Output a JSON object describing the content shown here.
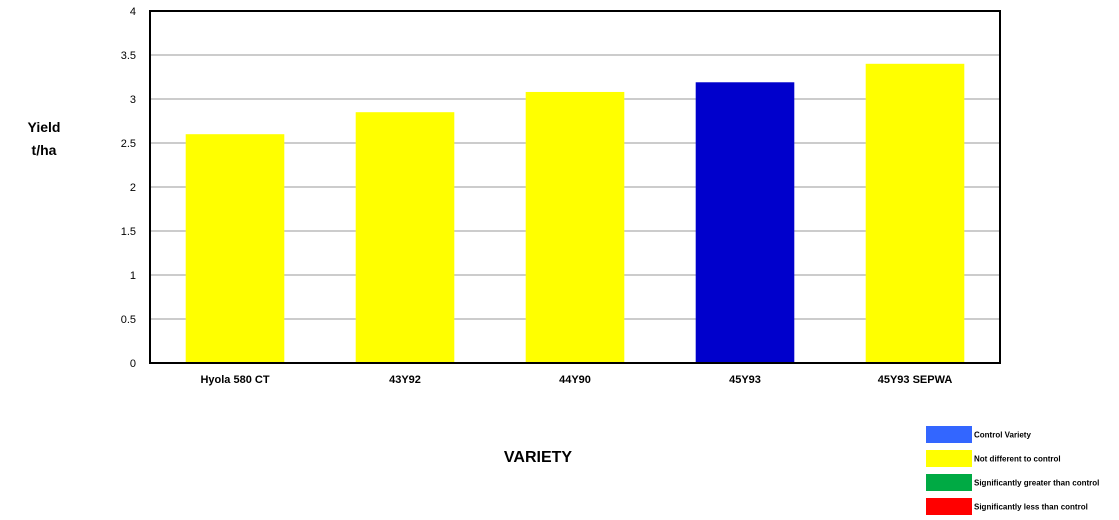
{
  "chart_data": {
    "type": "bar",
    "categories": [
      "Hyola 580 CT",
      "43Y92",
      "44Y90",
      "45Y93",
      "45Y93 SEPWA"
    ],
    "values": [
      2.6,
      2.85,
      3.08,
      3.19,
      3.4
    ],
    "bar_colors": [
      "#FFFF00",
      "#FFFF00",
      "#FFFF00",
      "#0000CC",
      "#FFFF00"
    ],
    "ylabel_lines": [
      "Yield",
      "t/ha"
    ],
    "xlabel": "VARIETY",
    "ylim": [
      0,
      4
    ],
    "yticks": [
      "0",
      "0.5",
      "1",
      "1.5",
      "2",
      "2.5",
      "3",
      "3.5",
      "4"
    ],
    "grid": true,
    "legend_position": "bottom-right",
    "legend": [
      {
        "label": "Control Variety",
        "color": "#3366FF"
      },
      {
        "label": "Not different to control",
        "color": "#FFFF00"
      },
      {
        "label": "Significantly greater than control",
        "color": "#00AA44"
      },
      {
        "label": "Significantly less than control",
        "color": "#FF0000"
      }
    ]
  }
}
